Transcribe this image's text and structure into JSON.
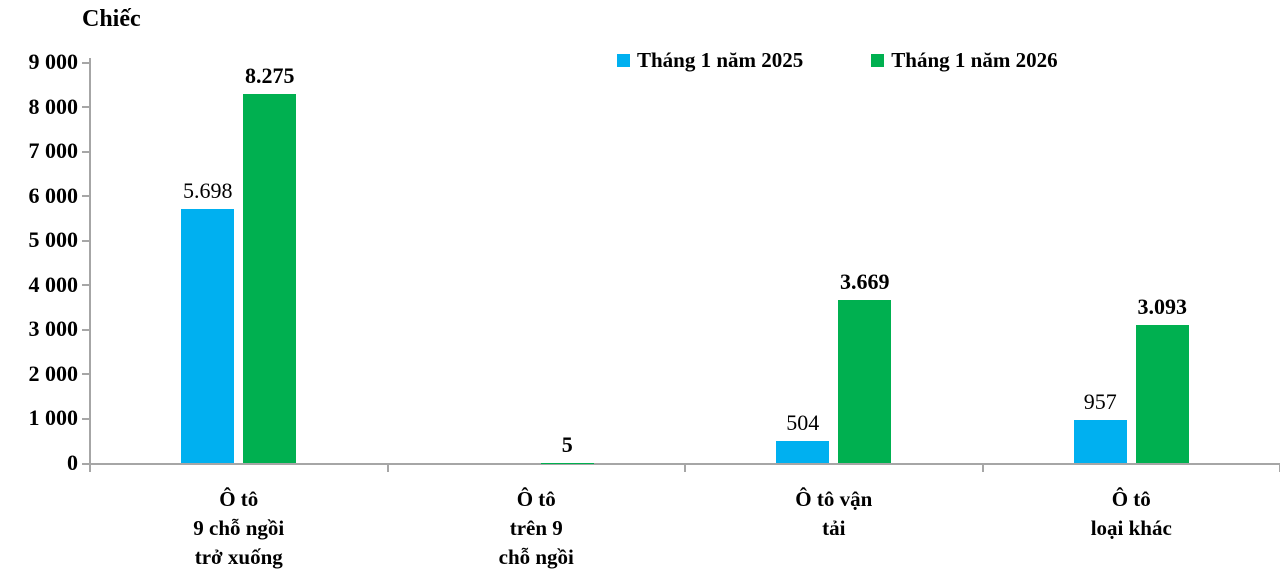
{
  "title": {
    "unit_label": "Chiếc"
  },
  "legend": {
    "items": [
      {
        "label": "Tháng 1 năm 2025",
        "color": "#00B0F0"
      },
      {
        "label": "Tháng 1 năm 2026",
        "color": "#00B050"
      }
    ]
  },
  "chart_data": {
    "type": "bar",
    "title": "Chiếc",
    "ylabel": "Chiếc",
    "categories": [
      "Ô tô\n9 chỗ ngồi\ntrở xuống",
      "Ô tô\ntrên 9\nchỗ ngồi",
      "Ô tô vận\ntải",
      "Ô tô\nloại khác"
    ],
    "series": [
      {
        "name": "Tháng 1 năm 2025",
        "color": "#00B0F0",
        "values": [
          5698,
          null,
          504,
          957
        ],
        "value_labels": [
          "5.698",
          "",
          "504",
          "957"
        ],
        "labels_bold": false
      },
      {
        "name": "Tháng 1 năm 2026",
        "color": "#00B050",
        "values": [
          8275,
          5,
          3669,
          3093
        ],
        "value_labels": [
          "8.275",
          "5",
          "3.669",
          "3.093"
        ],
        "labels_bold": true
      }
    ],
    "ylim": [
      0,
      9000
    ],
    "ytick_interval": 1000,
    "ytick_labels": [
      "0",
      "1 000",
      "2 000",
      "3 000",
      "4 000",
      "5 000",
      "6 000",
      "7 000",
      "8 000",
      "9 000"
    ],
    "grid": false,
    "legend_position": "top",
    "axis_color": "#A6A6A6"
  }
}
